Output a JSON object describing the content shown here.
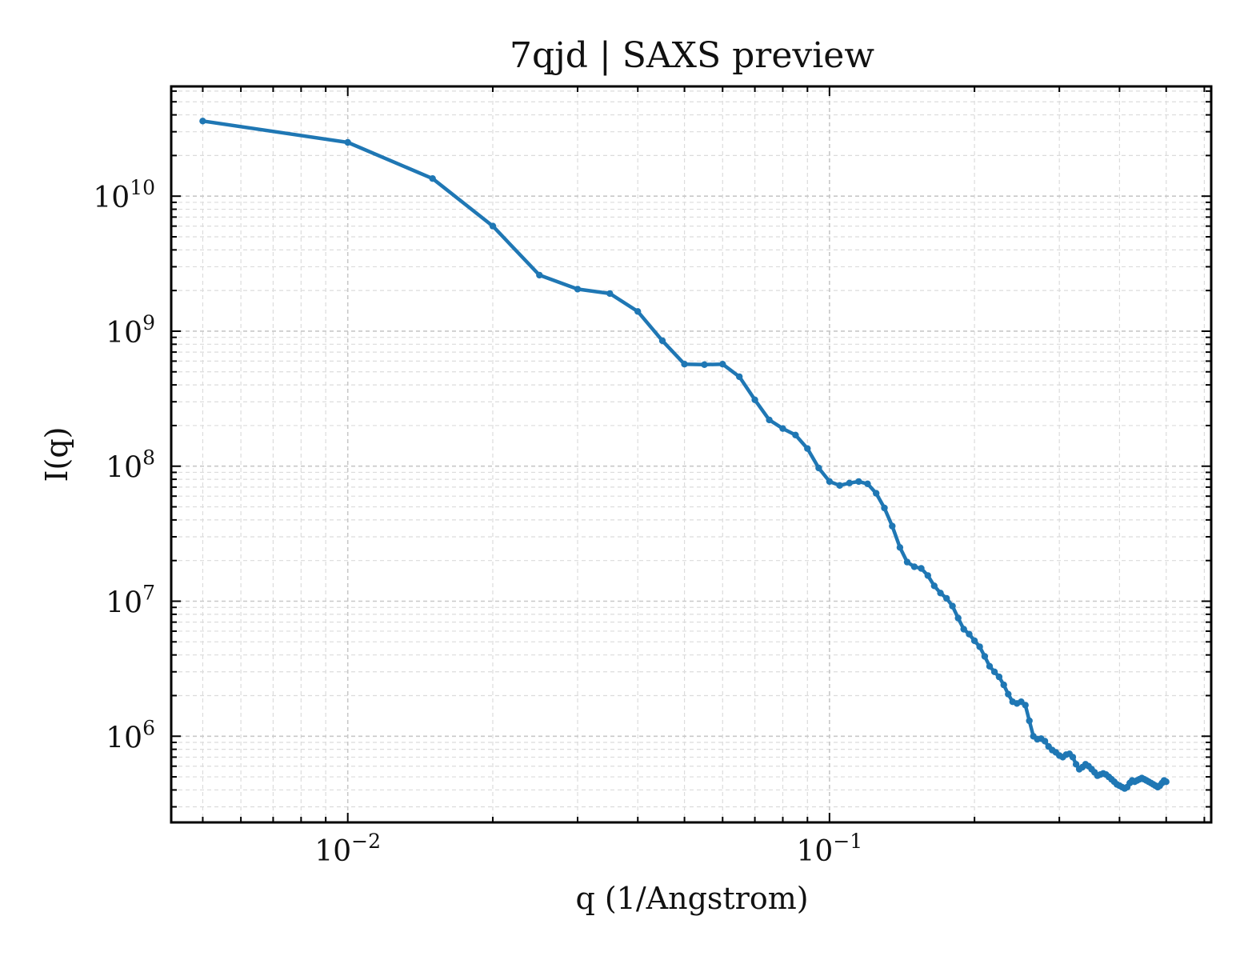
{
  "chart_data": {
    "type": "line",
    "title": "7qjd | SAXS preview",
    "xlabel": "q (1/Angstrom)",
    "ylabel": "I(q)",
    "xscale": "log",
    "yscale": "log",
    "xlim": [
      0.0043,
      0.62
    ],
    "ylim": [
      230000,
      65000000000
    ],
    "grid": true,
    "grid_minor": true,
    "line_color": "#1f77b4",
    "x_ticks": [
      {
        "value": 0.01,
        "base": "10",
        "exp": "−2"
      },
      {
        "value": 0.1,
        "base": "10",
        "exp": "−1"
      }
    ],
    "y_ticks": [
      {
        "value": 1000000,
        "base": "10",
        "exp": "6"
      },
      {
        "value": 10000000,
        "base": "10",
        "exp": "7"
      },
      {
        "value": 100000000,
        "base": "10",
        "exp": "8"
      },
      {
        "value": 1000000000,
        "base": "10",
        "exp": "9"
      },
      {
        "value": 10000000000,
        "base": "10",
        "exp": "10"
      }
    ],
    "series": [
      {
        "x": [
          0.005,
          0.01,
          0.015,
          0.02,
          0.025,
          0.03,
          0.035,
          0.04,
          0.045,
          0.05,
          0.055,
          0.06,
          0.065,
          0.07,
          0.075,
          0.08,
          0.085,
          0.09,
          0.095,
          0.1,
          0.105,
          0.11,
          0.115,
          0.12,
          0.125,
          0.13,
          0.135,
          0.14,
          0.145,
          0.15,
          0.155,
          0.16,
          0.165,
          0.17,
          0.175,
          0.18,
          0.185,
          0.19,
          0.195,
          0.2,
          0.205,
          0.21,
          0.215,
          0.22,
          0.225,
          0.23,
          0.235,
          0.24,
          0.245,
          0.25,
          0.255,
          0.26,
          0.265,
          0.27,
          0.275,
          0.28,
          0.285,
          0.29,
          0.295,
          0.3,
          0.305,
          0.31,
          0.315,
          0.32,
          0.325,
          0.33,
          0.335,
          0.34,
          0.345,
          0.35,
          0.355,
          0.36,
          0.365,
          0.37,
          0.375,
          0.38,
          0.385,
          0.39,
          0.395,
          0.4,
          0.405,
          0.41,
          0.415,
          0.42,
          0.425,
          0.43,
          0.435,
          0.44,
          0.445,
          0.45,
          0.455,
          0.46,
          0.465,
          0.47,
          0.475,
          0.48,
          0.485,
          0.49,
          0.495,
          0.5
        ],
        "values": [
          36000000000,
          25000000000,
          13500000000,
          6000000000,
          2600000000,
          2050000000,
          1900000000,
          1400000000,
          850000000,
          570000000,
          565000000,
          570000000,
          460000000,
          310000000,
          220000000,
          190000000,
          170000000,
          135000000,
          97000000,
          77000000,
          72000000,
          75000000,
          77000000,
          74000000,
          63000000,
          49000000,
          36000000,
          25000000,
          19500000,
          18000000,
          17500000,
          15500000,
          13000000,
          11500000,
          10500000,
          9200000,
          7500000,
          6200000,
          5700000,
          5100000,
          4600000,
          3900000,
          3300000,
          3000000,
          2750000,
          2400000,
          2050000,
          1800000,
          1750000,
          1800000,
          1700000,
          1300000,
          1000000,
          950000,
          960000,
          920000,
          840000,
          790000,
          760000,
          720000,
          700000,
          730000,
          740000,
          700000,
          620000,
          570000,
          590000,
          620000,
          600000,
          570000,
          540000,
          510000,
          520000,
          530000,
          520000,
          500000,
          480000,
          460000,
          440000,
          430000,
          420000,
          410000,
          420000,
          450000,
          470000,
          460000,
          470000,
          480000,
          490000,
          480000,
          470000,
          460000,
          450000,
          440000,
          430000,
          420000,
          430000,
          450000,
          470000,
          460000
        ]
      }
    ]
  }
}
